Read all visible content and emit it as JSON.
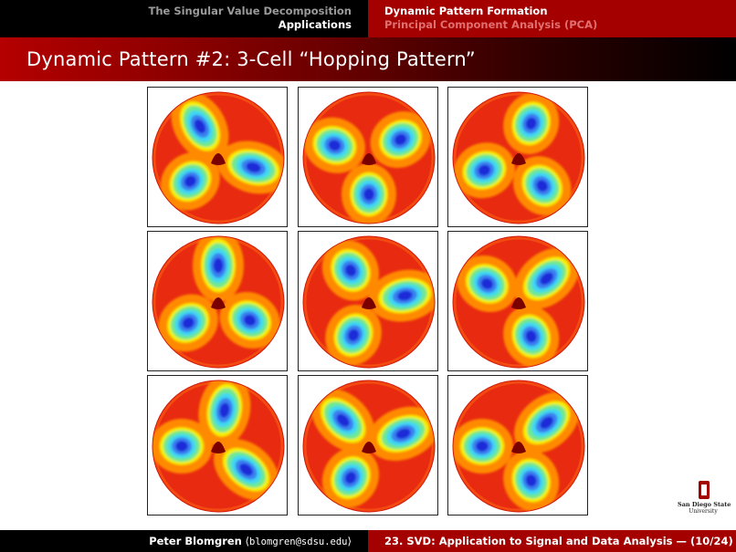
{
  "nav": {
    "section_left": "The Singular Value Decomposition",
    "subsection_left": "Applications",
    "section_right": "Dynamic Pattern Formation",
    "subsection_right": "Principal Component Analysis (PCA)"
  },
  "slide": {
    "title": "Dynamic Pattern #2: 3-Cell “Hopping Pattern”"
  },
  "figure": {
    "panels": [
      {
        "id": 1,
        "blobs": [
          {
            "dir": 120,
            "shape": "elongated"
          },
          {
            "dir": 220,
            "shape": "round"
          },
          {
            "dir": 345,
            "shape": "elongated"
          }
        ]
      },
      {
        "id": 2,
        "blobs": [
          {
            "dir": 160,
            "shape": "round"
          },
          {
            "dir": 270,
            "shape": "round"
          },
          {
            "dir": 30,
            "shape": "round"
          }
        ]
      },
      {
        "id": 3,
        "blobs": [
          {
            "dir": 200,
            "shape": "round"
          },
          {
            "dir": 310,
            "shape": "round"
          },
          {
            "dir": 70,
            "shape": "round"
          }
        ]
      },
      {
        "id": 4,
        "blobs": [
          {
            "dir": 90,
            "shape": "elongated"
          },
          {
            "dir": 215,
            "shape": "round"
          },
          {
            "dir": 330,
            "shape": "round"
          }
        ]
      },
      {
        "id": 5,
        "blobs": [
          {
            "dir": 120,
            "shape": "round"
          },
          {
            "dir": 245,
            "shape": "round"
          },
          {
            "dir": 10,
            "shape": "elongated"
          }
        ]
      },
      {
        "id": 6,
        "blobs": [
          {
            "dir": 150,
            "shape": "round"
          },
          {
            "dir": 290,
            "shape": "round"
          },
          {
            "dir": 40,
            "shape": "elongated"
          }
        ]
      },
      {
        "id": 7,
        "blobs": [
          {
            "dir": 80,
            "shape": "elongated"
          },
          {
            "dir": 180,
            "shape": "round"
          },
          {
            "dir": 320,
            "shape": "elongated"
          }
        ]
      },
      {
        "id": 8,
        "blobs": [
          {
            "dir": 135,
            "shape": "elongated"
          },
          {
            "dir": 240,
            "shape": "round"
          },
          {
            "dir": 20,
            "shape": "elongated"
          }
        ]
      },
      {
        "id": 9,
        "blobs": [
          {
            "dir": 180,
            "shape": "round"
          },
          {
            "dir": 290,
            "shape": "round"
          },
          {
            "dir": 40,
            "shape": "elongated"
          }
        ]
      }
    ],
    "colors": {
      "background_red": "#e82a10",
      "core_dark": "#7a0000",
      "ring_orange": "#ff8a00",
      "ring_yellow": "#f4f000",
      "ring_green": "#70e890",
      "ring_cyan": "#3fd8f0",
      "ring_blue": "#3a80f0",
      "deep_blue": "#1a2ad8"
    }
  },
  "logo": {
    "line1": "San Diego State",
    "line2": "University"
  },
  "footer": {
    "author": "Peter Blomgren",
    "email_open": "⟨",
    "email": "blomgren@sdsu.edu",
    "email_close": "⟩",
    "lecture": "23. SVD: Application to Signal and Data Analysis — (10/24)"
  }
}
